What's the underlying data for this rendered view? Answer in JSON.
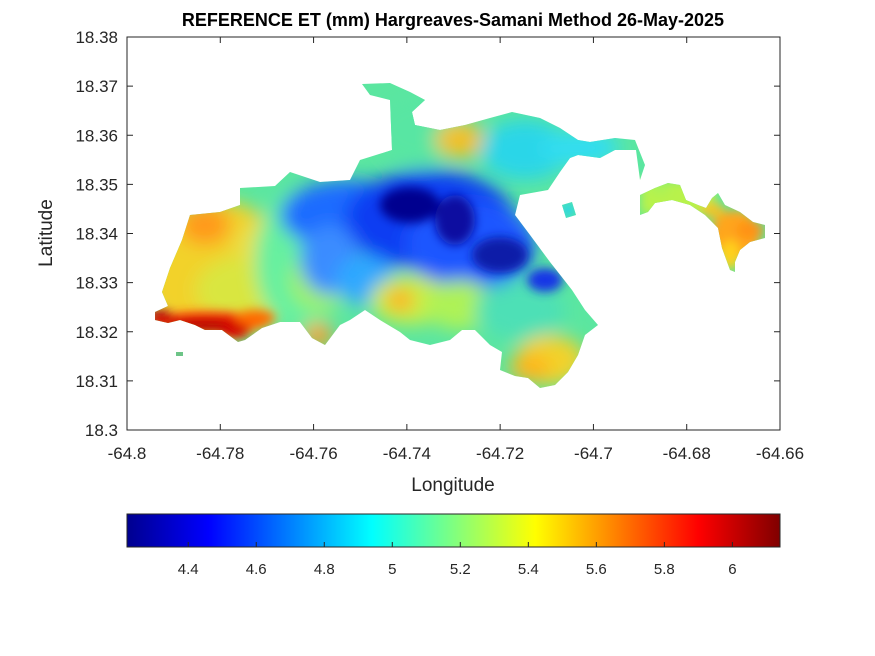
{
  "chart_data": {
    "type": "heatmap",
    "title": "REFERENCE ET (mm) Hargreaves-Samani Method  26-May-2025",
    "xlabel": "Longitude",
    "ylabel": "Latitude",
    "xlim": [
      -64.8,
      -64.66
    ],
    "ylim": [
      18.3,
      18.38
    ],
    "xticks": [
      "-64.8",
      "-64.78",
      "-64.76",
      "-64.74",
      "-64.72",
      "-64.7",
      "-64.68",
      "-64.66"
    ],
    "yticks": [
      "18.3",
      "18.31",
      "18.32",
      "18.33",
      "18.34",
      "18.35",
      "18.36",
      "18.37",
      "18.38"
    ],
    "colormap": "jet",
    "colorbar": {
      "orientation": "horizontal",
      "placement": "below",
      "range": [
        4.22,
        6.14
      ],
      "ticks": [
        "4.4",
        "4.6",
        "4.8",
        "5",
        "5.2",
        "5.4",
        "5.6",
        "5.8",
        "6"
      ]
    },
    "grid": false,
    "regions": [
      {
        "name": "west",
        "range": [
          5.1,
          6.1
        ],
        "extent_lon": [
          -64.795,
          -64.766
        ],
        "extent_lat": [
          18.317,
          18.345
        ]
      },
      {
        "name": "central",
        "range": [
          4.3,
          5.6
        ],
        "extent_lon": [
          -64.766,
          -64.707
        ],
        "extent_lat": [
          18.309,
          18.372
        ]
      },
      {
        "name": "east-strip",
        "range": [
          4.8,
          5.4
        ],
        "extent_lon": [
          -64.707,
          -64.68
        ],
        "extent_lat": [
          18.338,
          18.361
        ]
      },
      {
        "name": "east-tip",
        "range": [
          5.4,
          5.7
        ],
        "extent_lon": [
          -64.68,
          -64.663
        ],
        "extent_lat": [
          18.331,
          18.345
        ]
      }
    ],
    "min_zone": {
      "lon": -64.728,
      "lat": 18.34,
      "value": 4.3
    },
    "max_zone": {
      "lon": -64.786,
      "lat": 18.321,
      "value": 6.1
    }
  }
}
